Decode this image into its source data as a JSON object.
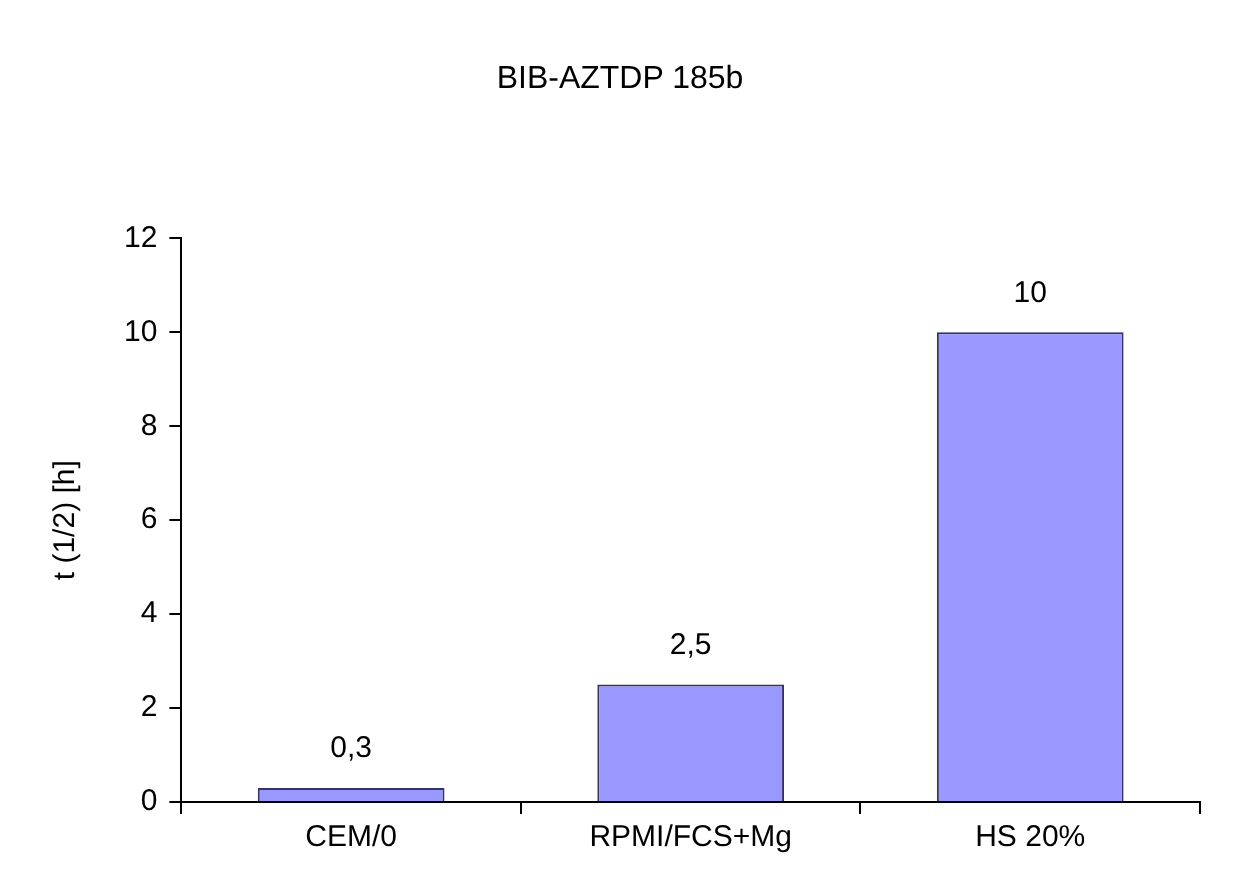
{
  "chart_data": {
    "type": "bar",
    "title": "BIB-AZTDP 185b",
    "ylabel": "t (1/2) [h]",
    "categories": [
      "CEM/0",
      "RPMI/FCS+Mg",
      "HS 20%"
    ],
    "values": [
      0.3,
      2.5,
      10
    ],
    "value_labels": [
      "0,3",
      "2,5",
      "10"
    ],
    "color": "#9999ff",
    "ylim": [
      0,
      12
    ],
    "yticks": [
      0,
      2,
      4,
      6,
      8,
      10,
      12
    ],
    "grid": false,
    "legend": false
  }
}
